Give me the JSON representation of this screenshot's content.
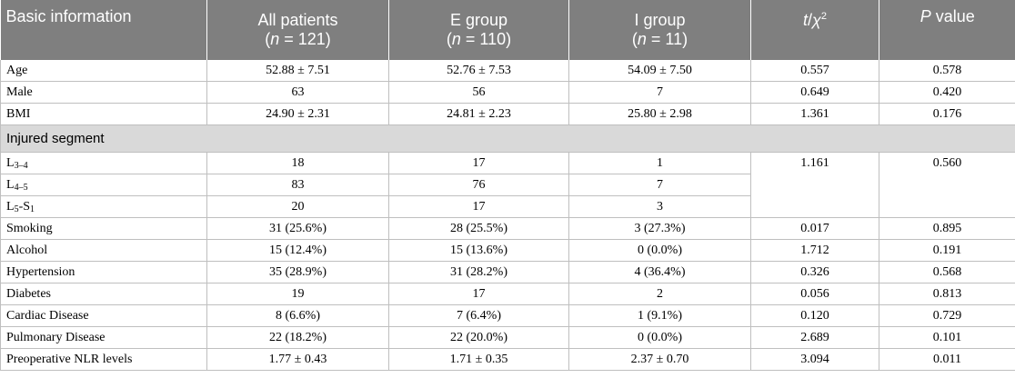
{
  "header": {
    "basic": "Basic information",
    "all": {
      "label": "All patients",
      "n": "121"
    },
    "e": {
      "label": "E group",
      "n": "110"
    },
    "i": {
      "label": "I group",
      "n": "11"
    },
    "stat_t": "t",
    "stat_sep": "/",
    "stat_chi": "χ",
    "stat_sup": "2",
    "p_italic": "P",
    "p_rest": " value",
    "n_letter": "n",
    "n_eq": " = "
  },
  "rows_top": [
    {
      "label": "Age",
      "all": "52.88 ± 7.51",
      "e": "52.76 ± 7.53",
      "i": "54.09 ± 7.50",
      "t": "0.557",
      "p": "0.578"
    },
    {
      "label": "Male",
      "all": "63",
      "e": "56",
      "i": "7",
      "t": "0.649",
      "p": "0.420"
    },
    {
      "label": "BMI",
      "all": "24.90 ± 2.31",
      "e": "24.81 ± 2.23",
      "i": "25.80 ± 2.98",
      "t": "1.361",
      "p": "0.176"
    }
  ],
  "section": {
    "label": "Injured segment"
  },
  "segments": {
    "t": "1.161",
    "p": "0.560",
    "rows": [
      {
        "pre": "L",
        "sub1": "3–4",
        "mid": "",
        "pre2": "",
        "sub2": "",
        "all": "18",
        "e": "17",
        "i": "1"
      },
      {
        "pre": "L",
        "sub1": "4–5",
        "mid": "",
        "pre2": "",
        "sub2": "",
        "all": "83",
        "e": "76",
        "i": "7"
      },
      {
        "pre": "L",
        "sub1": "5",
        "mid": "-",
        "pre2": "S",
        "sub2": "1",
        "all": "20",
        "e": "17",
        "i": "3"
      }
    ]
  },
  "rows_bottom": [
    {
      "label": "Smoking",
      "all": "31 (25.6%)",
      "e": "28 (25.5%)",
      "i": "3 (27.3%)",
      "t": "0.017",
      "p": "0.895"
    },
    {
      "label": "Alcohol",
      "all": "15 (12.4%)",
      "e": "15 (13.6%)",
      "i": "0 (0.0%)",
      "t": "1.712",
      "p": "0.191"
    },
    {
      "label": "Hypertension",
      "all": "35 (28.9%)",
      "e": "31 (28.2%)",
      "i": "4 (36.4%)",
      "t": "0.326",
      "p": "0.568"
    },
    {
      "label": "Diabetes",
      "all": "19",
      "e": "17",
      "i": "2",
      "t": "0.056",
      "p": "0.813"
    },
    {
      "label": "Cardiac Disease",
      "all": "8 (6.6%)",
      "e": "7 (6.4%)",
      "i": "1 (9.1%)",
      "t": "0.120",
      "p": "0.729"
    },
    {
      "label": "Pulmonary Disease",
      "all": "22 (18.2%)",
      "e": "22 (20.0%)",
      "i": "0 (0.0%)",
      "t": "2.689",
      "p": "0.101"
    },
    {
      "label": "Preoperative NLR levels",
      "all": "1.77 ± 0.43",
      "e": "1.71 ± 0.35",
      "i": "2.37 ± 0.70",
      "t": "3.094",
      "p": "0.011"
    }
  ]
}
